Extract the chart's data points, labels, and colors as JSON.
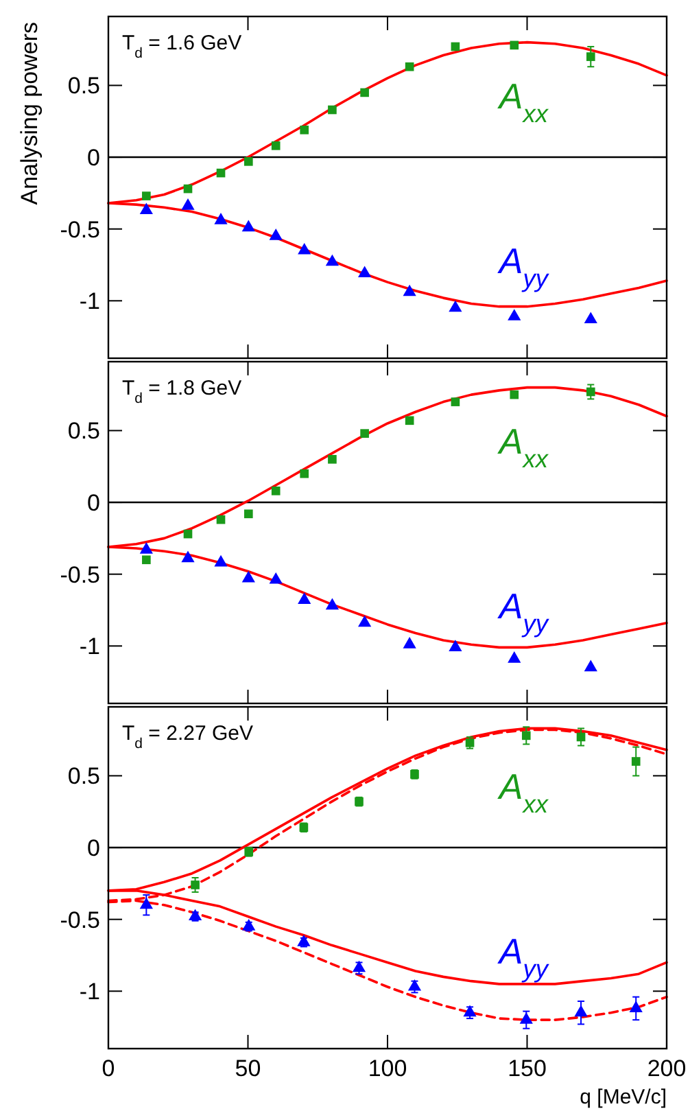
{
  "chart_data": [
    {
      "type": "scatter",
      "annotations": [
        "T$_{d}$ = 1.6 GeV"
      ],
      "ylabel": "Analysing powers",
      "xlim": [
        0,
        200
      ],
      "xticks": [
        0,
        50,
        100,
        150,
        200
      ],
      "ylim": [
        -1.4,
        0.98
      ],
      "yticks": [
        -1,
        -0.5,
        0,
        0.5
      ],
      "tick_labels": "y",
      "ref_lines": [
        {
          "axis": "y",
          "value": 0,
          "color": "#000000"
        }
      ],
      "series": [
        {
          "type": "line",
          "color": "#ff0000",
          "line_style": "solid",
          "marker": "none",
          "x": [
            0,
            10,
            20,
            30,
            40,
            50,
            60,
            70,
            80,
            90,
            100,
            110,
            120,
            130,
            140,
            150,
            160,
            170,
            180,
            190,
            200
          ],
          "values": [
            -0.32,
            -0.3,
            -0.26,
            -0.19,
            -0.1,
            0.0,
            0.11,
            0.22,
            0.34,
            0.45,
            0.55,
            0.64,
            0.71,
            0.76,
            0.79,
            0.8,
            0.79,
            0.76,
            0.71,
            0.65,
            0.57
          ]
        },
        {
          "type": "line",
          "color": "#ff0000",
          "line_style": "solid",
          "marker": "none",
          "x": [
            0,
            10,
            20,
            30,
            40,
            50,
            60,
            70,
            80,
            90,
            100,
            110,
            120,
            130,
            140,
            150,
            160,
            170,
            180,
            190,
            200
          ],
          "values": [
            -0.32,
            -0.33,
            -0.35,
            -0.38,
            -0.43,
            -0.49,
            -0.56,
            -0.64,
            -0.72,
            -0.8,
            -0.87,
            -0.93,
            -0.98,
            -1.02,
            -1.04,
            -1.04,
            -1.02,
            -0.99,
            -0.95,
            -0.91,
            -0.86
          ]
        },
        {
          "name": "A$_{xx}$",
          "color": "#1a9a1a",
          "marker": "square",
          "x": [
            13.6,
            28.5,
            40.3,
            50.2,
            60,
            70.2,
            80.2,
            91.8,
            107.9,
            124.3,
            145.4,
            172.8
          ],
          "values": [
            -0.27,
            -0.22,
            -0.11,
            -0.03,
            0.08,
            0.19,
            0.33,
            0.45,
            0.63,
            0.77,
            0.78,
            0.7
          ],
          "errors": [
            null,
            null,
            null,
            null,
            null,
            null,
            null,
            null,
            null,
            null,
            null,
            0.07
          ]
        },
        {
          "name": "A$_{yy}$",
          "color": "#0000ff",
          "marker": "triangle",
          "x": [
            13.6,
            28.5,
            40.3,
            50.2,
            60,
            70.2,
            80.2,
            91.8,
            107.9,
            124.3,
            145.4,
            172.8
          ],
          "values": [
            -0.37,
            -0.34,
            -0.44,
            -0.49,
            -0.55,
            -0.65,
            -0.73,
            -0.81,
            -0.94,
            -1.05,
            -1.11,
            -1.13
          ]
        }
      ]
    },
    {
      "type": "scatter",
      "annotations": [
        "T$_{d}$ = 1.8 GeV"
      ],
      "xlim": [
        0,
        200
      ],
      "xticks": [
        0,
        50,
        100,
        150,
        200
      ],
      "ylim": [
        -1.4,
        0.98
      ],
      "yticks": [
        -1,
        -0.5,
        0,
        0.5
      ],
      "tick_labels": "y",
      "ref_lines": [
        {
          "axis": "y",
          "value": 0,
          "color": "#000000"
        }
      ],
      "series": [
        {
          "type": "line",
          "color": "#ff0000",
          "line_style": "solid",
          "marker": "none",
          "x": [
            0,
            10,
            20,
            30,
            40,
            50,
            60,
            70,
            80,
            90,
            100,
            110,
            120,
            130,
            140,
            150,
            160,
            170,
            180,
            190,
            200
          ],
          "values": [
            -0.31,
            -0.29,
            -0.25,
            -0.18,
            -0.09,
            0.01,
            0.12,
            0.23,
            0.34,
            0.45,
            0.55,
            0.63,
            0.7,
            0.75,
            0.78,
            0.8,
            0.8,
            0.78,
            0.74,
            0.68,
            0.6
          ]
        },
        {
          "type": "line",
          "color": "#ff0000",
          "line_style": "solid",
          "marker": "none",
          "x": [
            0,
            10,
            20,
            30,
            40,
            50,
            60,
            70,
            80,
            90,
            100,
            110,
            120,
            130,
            140,
            150,
            160,
            170,
            180,
            190,
            200
          ],
          "values": [
            -0.31,
            -0.32,
            -0.34,
            -0.37,
            -0.42,
            -0.48,
            -0.55,
            -0.63,
            -0.71,
            -0.78,
            -0.85,
            -0.91,
            -0.96,
            -0.99,
            -1.01,
            -1.01,
            -0.99,
            -0.96,
            -0.92,
            -0.88,
            -0.84
          ]
        },
        {
          "name": "A$_{xx}$",
          "color": "#1a9a1a",
          "marker": "square",
          "x": [
            13.6,
            28.5,
            40.3,
            50.2,
            60,
            70.2,
            80.2,
            91.8,
            107.9,
            124.3,
            145.4,
            172.8
          ],
          "values": [
            -0.4,
            -0.22,
            -0.12,
            -0.08,
            0.08,
            0.2,
            0.3,
            0.48,
            0.57,
            0.7,
            0.75,
            0.77
          ],
          "errors": [
            null,
            null,
            null,
            null,
            null,
            null,
            null,
            null,
            null,
            null,
            null,
            0.05
          ]
        },
        {
          "name": "A$_{yy}$",
          "color": "#0000ff",
          "marker": "triangle",
          "x": [
            13.6,
            28.5,
            40.3,
            50.2,
            60,
            70.2,
            80.2,
            91.8,
            107.9,
            124.3,
            145.4,
            172.8
          ],
          "values": [
            -0.33,
            -0.39,
            -0.42,
            -0.53,
            -0.54,
            -0.68,
            -0.72,
            -0.84,
            -0.99,
            -1.01,
            -1.09,
            -1.15
          ]
        }
      ]
    },
    {
      "type": "scatter",
      "annotations": [
        "T$_{d}$ = 2.27 GeV"
      ],
      "xlabel": "q [MeV/c]",
      "xlim": [
        0,
        200
      ],
      "xticks": [
        0,
        50,
        100,
        150,
        200
      ],
      "ylim": [
        -1.4,
        0.98
      ],
      "yticks": [
        -1,
        -0.5,
        0,
        0.5
      ],
      "ref_lines": [
        {
          "axis": "y",
          "value": 0,
          "color": "#000000"
        }
      ],
      "series": [
        {
          "type": "line",
          "color": "#ff0000",
          "line_style": "solid",
          "marker": "none",
          "x": [
            0,
            10,
            20,
            30,
            40,
            50,
            60,
            70,
            80,
            90,
            100,
            110,
            120,
            130,
            140,
            150,
            160,
            170,
            180,
            190,
            200
          ],
          "values": [
            -0.3,
            -0.29,
            -0.24,
            -0.18,
            -0.09,
            0.02,
            0.13,
            0.24,
            0.35,
            0.45,
            0.55,
            0.64,
            0.71,
            0.77,
            0.81,
            0.83,
            0.83,
            0.81,
            0.78,
            0.73,
            0.68
          ]
        },
        {
          "type": "line",
          "color": "#ff0000",
          "line_style": "dashed",
          "marker": "none",
          "x": [
            0,
            10,
            20,
            30,
            40,
            50,
            60,
            70,
            80,
            90,
            100,
            110,
            120,
            130,
            140,
            150,
            160,
            170,
            180,
            190,
            200
          ],
          "values": [
            -0.37,
            -0.36,
            -0.33,
            -0.27,
            -0.17,
            -0.05,
            0.08,
            0.2,
            0.32,
            0.43,
            0.53,
            0.62,
            0.7,
            0.76,
            0.8,
            0.82,
            0.82,
            0.8,
            0.76,
            0.71,
            0.65
          ]
        },
        {
          "type": "line",
          "color": "#ff0000",
          "line_style": "solid",
          "marker": "none",
          "x": [
            0,
            10,
            20,
            30,
            40,
            50,
            60,
            70,
            80,
            90,
            100,
            110,
            120,
            130,
            140,
            150,
            160,
            170,
            180,
            190,
            200
          ],
          "values": [
            -0.3,
            -0.3,
            -0.33,
            -0.37,
            -0.41,
            -0.48,
            -0.55,
            -0.61,
            -0.68,
            -0.74,
            -0.8,
            -0.86,
            -0.9,
            -0.93,
            -0.95,
            -0.95,
            -0.95,
            -0.93,
            -0.91,
            -0.88,
            -0.8
          ]
        },
        {
          "type": "line",
          "color": "#ff0000",
          "line_style": "dashed",
          "marker": "none",
          "x": [
            0,
            10,
            20,
            30,
            40,
            50,
            60,
            70,
            80,
            90,
            100,
            110,
            120,
            130,
            140,
            150,
            160,
            170,
            180,
            190,
            200
          ],
          "values": [
            -0.38,
            -0.37,
            -0.4,
            -0.45,
            -0.51,
            -0.58,
            -0.65,
            -0.73,
            -0.81,
            -0.89,
            -0.97,
            -1.04,
            -1.1,
            -1.15,
            -1.19,
            -1.2,
            -1.2,
            -1.18,
            -1.15,
            -1.11,
            -1.04
          ]
        },
        {
          "name": "A$_{xx}$",
          "color": "#1a9a1a",
          "marker": "square",
          "x": [
            31.1,
            50.3,
            70,
            89.8,
            109.7,
            129.5,
            149.7,
            169.3,
            189
          ],
          "values": [
            -0.26,
            -0.03,
            0.14,
            0.32,
            0.51,
            0.73,
            0.78,
            0.77,
            0.6
          ],
          "errors": [
            0.05,
            0.03,
            0.03,
            0.03,
            0.03,
            0.04,
            0.06,
            0.06,
            0.1
          ]
        },
        {
          "name": "A$_{yy}$",
          "color": "#0000ff",
          "marker": "triangle",
          "x": [
            13.6,
            31.1,
            50.3,
            70,
            89.8,
            109.7,
            129.5,
            149.7,
            169.3,
            189
          ],
          "values": [
            -0.4,
            -0.48,
            -0.55,
            -0.66,
            -0.84,
            -0.97,
            -1.15,
            -1.2,
            -1.15,
            -1.12
          ],
          "errors": [
            0.07,
            0.03,
            0.03,
            0.03,
            0.04,
            0.04,
            0.04,
            0.06,
            0.08,
            0.08
          ]
        }
      ]
    }
  ]
}
